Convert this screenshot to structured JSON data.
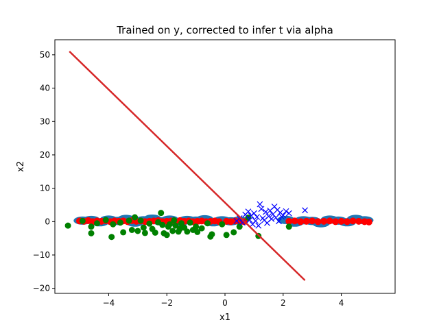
{
  "chart_data": {
    "type": "scatter",
    "title": "Trained on y, corrected to infer t via alpha",
    "xlabel": "x1",
    "ylabel": "x2",
    "xlim": [
      -5.85,
      5.85
    ],
    "ylim": [
      -21.5,
      54.5
    ],
    "xticks": [
      -4,
      -2,
      0,
      2,
      4
    ],
    "yticks": [
      -20,
      -10,
      0,
      10,
      20,
      30,
      40,
      50
    ],
    "grid": false,
    "legend": "none",
    "colors": {
      "background_band": "#1f77b4",
      "red_points": "#ff0000",
      "green_points": "#008000",
      "blue_crosses": "#0000ff",
      "boundary_line": "#d62728"
    },
    "boundary_line": {
      "x": [
        -5.35,
        2.75
      ],
      "y": [
        51.0,
        -17.6
      ]
    },
    "blue_band": {
      "x": [
        -4.9,
        -4.6,
        -4.3,
        -4.0,
        -3.7,
        -3.4,
        -3.1,
        -2.8,
        -2.5,
        -2.2,
        -1.9,
        -1.6,
        -1.3,
        -1.0,
        -0.7,
        -0.4,
        -0.1,
        0.2,
        0.5,
        2.1,
        2.4,
        2.7,
        3.0,
        3.3,
        3.6,
        3.9,
        4.2,
        4.5,
        4.8
      ],
      "y": [
        0.3,
        0.5,
        -0.2,
        0.6,
        0.2,
        0.8,
        -0.3,
        0.4,
        0.9,
        0.1,
        0.6,
        -0.4,
        0.5,
        0.3,
        0.7,
        -0.2,
        0.4,
        0.1,
        0.3,
        0.5,
        -0.3,
        0.4,
        0.2,
        -0.5,
        0.6,
        0.3,
        -0.2,
        0.8,
        0.4
      ]
    },
    "red_points": {
      "x": [
        -5.0,
        -4.85,
        -4.7,
        -4.55,
        -4.4,
        -4.25,
        -4.1,
        -3.95,
        -3.8,
        -3.65,
        -3.5,
        -3.35,
        -3.2,
        -3.05,
        -2.9,
        -2.75,
        -2.6,
        -2.45,
        -2.3,
        -2.15,
        -2.0,
        -1.85,
        -1.7,
        -1.55,
        -1.4,
        -1.25,
        -1.1,
        -0.95,
        -0.8,
        -0.65,
        -0.5,
        -0.35,
        -0.2,
        0.05,
        0.2,
        0.35,
        0.5,
        0.65,
        2.2,
        2.4,
        2.6,
        2.8,
        3.0,
        3.2,
        3.4,
        3.6,
        3.8,
        4.0,
        4.2,
        4.4,
        4.6,
        4.8,
        4.95
      ],
      "y": [
        0.2,
        0.1,
        0.3,
        0.0,
        0.2,
        0.1,
        0.3,
        0.0,
        0.2,
        0.1,
        0.2,
        0.0,
        0.3,
        0.1,
        0.2,
        0.0,
        0.1,
        0.2,
        0.3,
        0.0,
        0.1,
        0.2,
        0.0,
        0.3,
        0.1,
        0.2,
        0.0,
        0.1,
        0.2,
        0.0,
        0.1,
        0.2,
        0.0,
        0.1,
        0.0,
        0.2,
        0.1,
        0.0,
        0.1,
        0.2,
        0.0,
        0.1,
        0.2,
        0.0,
        0.1,
        0.2,
        0.0,
        0.1,
        0.0,
        0.2,
        0.1,
        0.0,
        -0.1
      ]
    },
    "green_points": {
      "x": [
        -5.4,
        -4.9,
        -4.6,
        -4.6,
        -4.4,
        -4.1,
        -3.9,
        -3.85,
        -3.6,
        -3.5,
        -3.3,
        -3.2,
        -3.1,
        -3.0,
        -2.9,
        -2.8,
        -2.75,
        -2.6,
        -2.5,
        -2.4,
        -2.3,
        -2.2,
        -2.15,
        -2.1,
        -2.0,
        -1.95,
        -1.9,
        -1.8,
        -1.75,
        -1.7,
        -1.6,
        -1.55,
        -1.5,
        -1.4,
        -1.3,
        -1.2,
        -1.1,
        -1.0,
        -0.95,
        -0.8,
        -0.6,
        -0.5,
        -0.45,
        -0.1,
        0.05,
        0.3,
        0.5,
        0.8,
        1.15,
        2.2
      ],
      "y": [
        -1.2,
        0.2,
        -1.5,
        -3.5,
        -0.5,
        0.5,
        -4.6,
        -0.8,
        -0.3,
        -3.2,
        0.3,
        -2.5,
        1.3,
        -2.8,
        0.3,
        -1.8,
        -3.4,
        -0.6,
        -2.2,
        -3.3,
        -0.2,
        2.6,
        -1.0,
        -3.5,
        -4.0,
        -1.5,
        -0.8,
        -2.8,
        0.4,
        -1.2,
        -3.0,
        -2.2,
        -0.5,
        -1.8,
        -3.0,
        -0.3,
        -2.5,
        -1.5,
        -3.1,
        -2.0,
        -0.5,
        -4.5,
        -3.8,
        -0.8,
        -4.0,
        -3.2,
        -1.5,
        1.2,
        -4.3,
        -1.5
      ]
    },
    "blue_crosses": {
      "x": [
        0.4,
        0.5,
        0.6,
        0.7,
        0.8,
        0.85,
        0.9,
        0.95,
        1.0,
        1.05,
        1.1,
        1.15,
        1.2,
        1.25,
        1.3,
        1.35,
        1.4,
        1.45,
        1.5,
        1.55,
        1.6,
        1.65,
        1.7,
        1.75,
        1.8,
        1.85,
        1.9,
        1.95,
        2.0,
        2.1,
        2.2,
        2.75
      ],
      "y": [
        0.2,
        1.0,
        -0.3,
        2.1,
        3.0,
        0.5,
        1.8,
        -0.8,
        2.5,
        0.2,
        1.4,
        -1.2,
        5.2,
        3.8,
        1.0,
        0.4,
        2.9,
        -0.4,
        1.6,
        3.3,
        0.8,
        2.2,
        4.5,
        1.2,
        3.5,
        0.1,
        2.7,
        1.5,
        1.9,
        3.1,
        2.5,
        3.4
      ]
    }
  }
}
